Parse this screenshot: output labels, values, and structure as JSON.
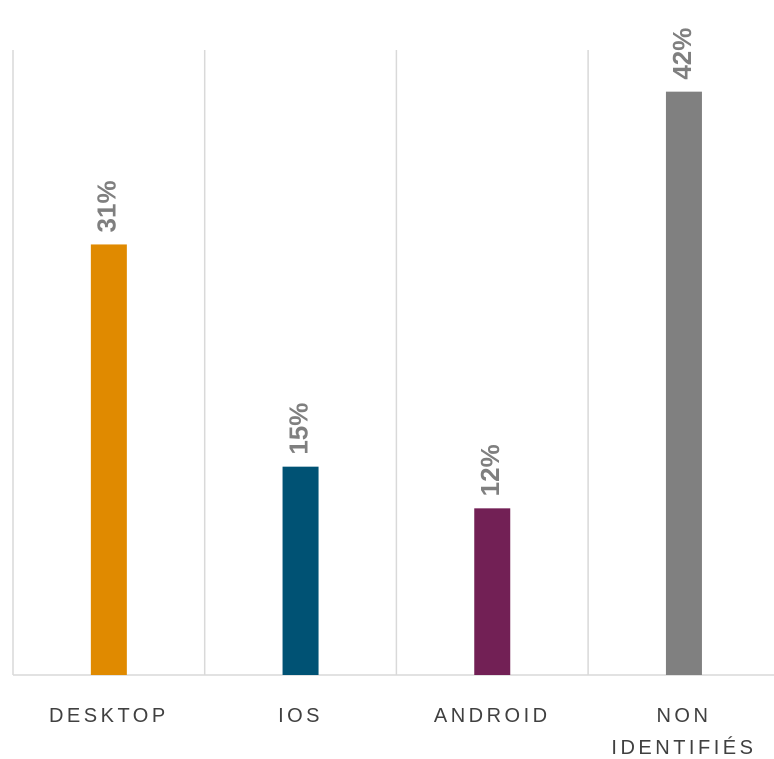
{
  "chart_data": {
    "type": "bar",
    "categories": [
      "DESKTOP",
      "IOS",
      "ANDROID",
      "NON IDENTIFIÉS"
    ],
    "values": [
      31,
      15,
      12,
      42
    ],
    "value_labels": [
      "31%",
      "15%",
      "12%",
      "42%"
    ],
    "colors": [
      "#e08a00",
      "#005274",
      "#722055",
      "#808080"
    ],
    "ylim": [
      0,
      45
    ]
  }
}
